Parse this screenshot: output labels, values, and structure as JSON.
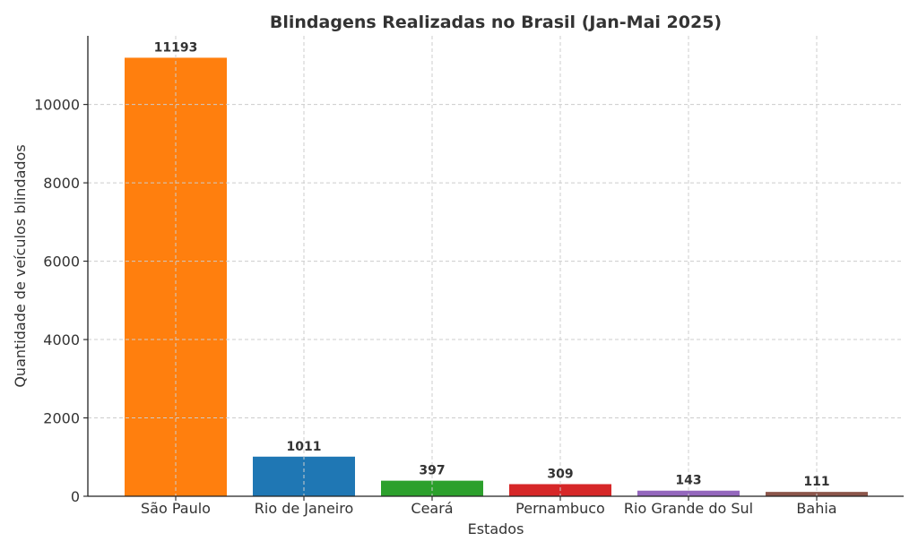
{
  "chart_data": {
    "type": "bar",
    "title": "Blindagens Realizadas no Brasil (Jan-Mai 2025)",
    "xlabel": "Estados",
    "ylabel": "Quantidade de veículos blindados",
    "categories": [
      "São Paulo",
      "Rio de Janeiro",
      "Ceará",
      "Pernambuco",
      "Rio Grande do Sul",
      "Bahia"
    ],
    "values": [
      11193,
      1011,
      397,
      309,
      143,
      111
    ],
    "data_labels": [
      "11193",
      "1011",
      "397",
      "309",
      "143",
      "111"
    ],
    "colors": [
      "#ff7f0e",
      "#1f77b4",
      "#2ca02c",
      "#d62728",
      "#9467bd",
      "#8c564b"
    ],
    "ylim": [
      0,
      11752
    ],
    "yticks": [
      0,
      2000,
      4000,
      6000,
      8000,
      10000
    ],
    "ytick_labels": [
      "0",
      "2000",
      "4000",
      "6000",
      "8000",
      "10000"
    ],
    "grid": true
  }
}
